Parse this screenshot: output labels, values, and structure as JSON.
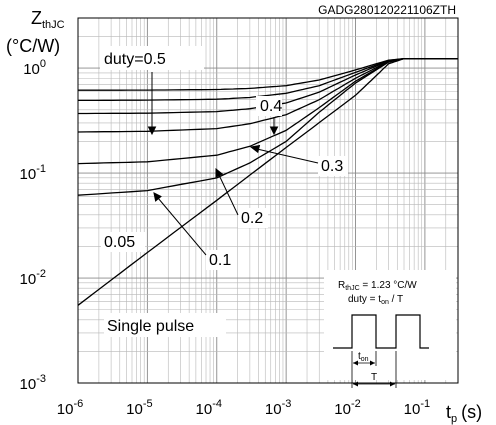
{
  "chart_data": {
    "type": "line",
    "title": "GADG280120221106ZTH",
    "ylabel": {
      "main": "Z",
      "sub": "thJC",
      "unit": "(°C/W)"
    },
    "xlabel": {
      "main": "t",
      "sub": "p",
      "unit": "(s)"
    },
    "x_scale": "log",
    "y_scale": "log",
    "xlim": [
      1e-06,
      0.3
    ],
    "ylim": [
      0.001,
      3
    ],
    "grid": true,
    "x_ticks": [
      {
        "value": 1e-06,
        "base": "10",
        "exp": "-6"
      },
      {
        "value": 1e-05,
        "base": "10",
        "exp": "-5"
      },
      {
        "value": 0.0001,
        "base": "10",
        "exp": "-4"
      },
      {
        "value": 0.001,
        "base": "10",
        "exp": "-3"
      },
      {
        "value": 0.01,
        "base": "10",
        "exp": "-2"
      },
      {
        "value": 0.1,
        "base": "10",
        "exp": "-1"
      }
    ],
    "y_ticks": [
      {
        "value": 1,
        "base": "10",
        "exp": "0"
      },
      {
        "value": 0.1,
        "base": "10",
        "exp": "-1"
      },
      {
        "value": 0.01,
        "base": "10",
        "exp": "-2"
      },
      {
        "value": 0.001,
        "base": "10",
        "exp": "-3"
      }
    ],
    "steady_state": 1.23,
    "series": [
      {
        "name": "duty=0.5",
        "x": [
          1e-06,
          1e-05,
          0.0001,
          0.0003,
          0.001,
          0.003,
          0.01,
          0.03,
          0.05,
          0.3
        ],
        "y": [
          0.615,
          0.617,
          0.625,
          0.64,
          0.68,
          0.77,
          0.96,
          1.19,
          1.23,
          1.23
        ]
      },
      {
        "name": "0.4",
        "x": [
          1e-06,
          1e-05,
          0.0001,
          0.0003,
          0.001,
          0.003,
          0.01,
          0.03,
          0.05,
          0.3
        ],
        "y": [
          0.492,
          0.495,
          0.505,
          0.525,
          0.575,
          0.68,
          0.91,
          1.18,
          1.23,
          1.23
        ]
      },
      {
        "name": "0.3",
        "x": [
          1e-06,
          1e-05,
          0.0001,
          0.0003,
          0.001,
          0.003,
          0.01,
          0.03,
          0.05,
          0.3
        ],
        "y": [
          0.369,
          0.372,
          0.385,
          0.41,
          0.465,
          0.59,
          0.86,
          1.17,
          1.23,
          1.23
        ]
      },
      {
        "name": "0.2",
        "x": [
          1e-06,
          1e-05,
          0.0001,
          0.0003,
          0.001,
          0.003,
          0.01,
          0.03,
          0.05,
          0.3
        ],
        "y": [
          0.246,
          0.25,
          0.265,
          0.295,
          0.36,
          0.5,
          0.8,
          1.16,
          1.23,
          1.23
        ]
      },
      {
        "name": "0.1",
        "x": [
          1e-06,
          1e-05,
          0.0001,
          0.0003,
          0.001,
          0.003,
          0.01,
          0.03,
          0.05,
          0.3
        ],
        "y": [
          0.123,
          0.128,
          0.148,
          0.18,
          0.255,
          0.42,
          0.75,
          1.15,
          1.23,
          1.23
        ]
      },
      {
        "name": "0.05",
        "x": [
          1e-06,
          1e-05,
          0.0001,
          0.0003,
          0.001,
          0.003,
          0.01,
          0.03,
          0.05,
          0.3
        ],
        "y": [
          0.0615,
          0.068,
          0.09,
          0.125,
          0.2,
          0.38,
          0.72,
          1.14,
          1.23,
          1.23
        ]
      },
      {
        "name": "Single pulse",
        "x": [
          1e-06,
          1e-05,
          0.0001,
          0.001,
          0.01,
          0.02,
          0.03,
          0.05,
          0.3
        ],
        "y": [
          0.0055,
          0.0175,
          0.055,
          0.175,
          0.55,
          0.85,
          1.1,
          1.23,
          1.23
        ]
      }
    ],
    "annotations": {
      "duty_05": "duty=0.5",
      "duty_04": "0.4",
      "duty_03": "0.3",
      "duty_02": "0.2",
      "duty_01": "0.1",
      "duty_005": "0.05",
      "single_pulse": "Single pulse"
    },
    "inset": {
      "rth_main": "R",
      "rth_sub": "thJC",
      "rth_value": " = 1.23 °C/W",
      "duty_prefix": "duty = t",
      "duty_sub": "on",
      "duty_suffix": " / T",
      "ton_main": "t",
      "ton_sub": "on",
      "period_label": "T"
    }
  }
}
